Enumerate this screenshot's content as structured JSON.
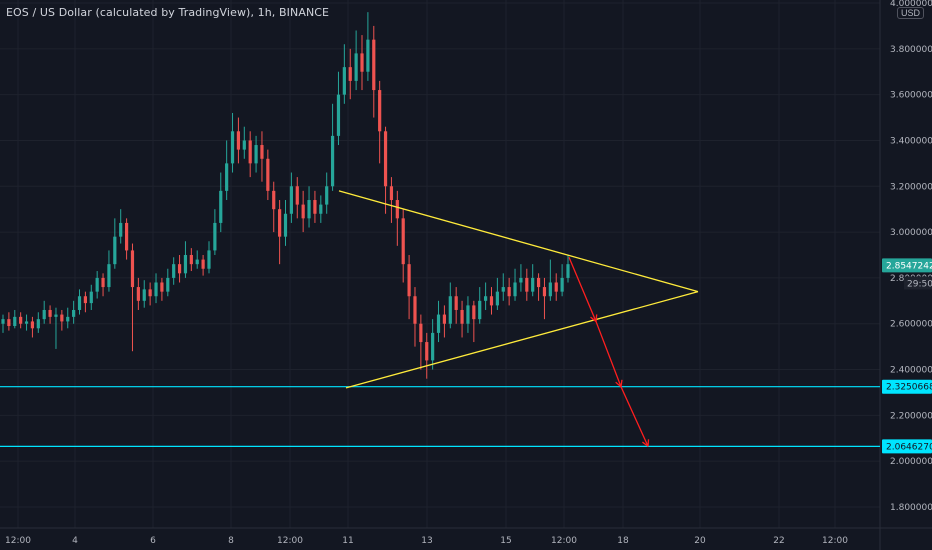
{
  "header": {
    "title": "EOS / US Dollar (calculated by TradingView), 1h, BINANCE",
    "currency": "USD"
  },
  "chart_data": {
    "type": "candlestick",
    "ylim": [
      1.7,
      4.0
    ],
    "y_ticks": [
      "4.0000000",
      "3.8000000",
      "3.6000000",
      "3.4000000",
      "3.2000000",
      "3.0000000",
      "2.8000000",
      "2.6000000",
      "2.4000000",
      "2.2000000",
      "2.0000000",
      "1.8000000"
    ],
    "x_ticks": [
      "12:00",
      "4",
      "6",
      "8",
      "12:00",
      "11",
      "13",
      "15",
      "12:00",
      "18",
      "20",
      "22",
      "12:00"
    ],
    "price_labels": [
      {
        "value": "2.8547242",
        "color": "#26a69a"
      },
      {
        "value": "2.3250668",
        "color": "#00e5ff"
      },
      {
        "value": "2.0646270",
        "color": "#00e5ff"
      }
    ],
    "countdown_label": "29:50",
    "horizontal_levels": [
      2.3250668,
      2.064627
    ],
    "candles": [
      [
        2.6,
        2.62,
        2.56,
        2.64
      ],
      [
        2.62,
        2.59,
        2.57,
        2.65
      ],
      [
        2.59,
        2.63,
        2.58,
        2.66
      ],
      [
        2.63,
        2.6,
        2.58,
        2.65
      ],
      [
        2.6,
        2.61,
        2.57,
        2.64
      ],
      [
        2.61,
        2.58,
        2.54,
        2.63
      ],
      [
        2.58,
        2.62,
        2.56,
        2.65
      ],
      [
        2.62,
        2.66,
        2.6,
        2.7
      ],
      [
        2.66,
        2.63,
        2.6,
        2.68
      ],
      [
        2.63,
        2.64,
        2.49,
        2.67
      ],
      [
        2.64,
        2.61,
        2.57,
        2.66
      ],
      [
        2.61,
        2.63,
        2.58,
        2.67
      ],
      [
        2.63,
        2.66,
        2.6,
        2.7
      ],
      [
        2.66,
        2.72,
        2.64,
        2.75
      ],
      [
        2.72,
        2.69,
        2.65,
        2.74
      ],
      [
        2.69,
        2.74,
        2.66,
        2.77
      ],
      [
        2.74,
        2.8,
        2.71,
        2.83
      ],
      [
        2.8,
        2.76,
        2.72,
        2.82
      ],
      [
        2.76,
        2.86,
        2.74,
        2.92
      ],
      [
        2.86,
        2.98,
        2.84,
        3.06
      ],
      [
        2.98,
        3.04,
        2.95,
        3.1
      ],
      [
        3.04,
        2.92,
        2.88,
        3.06
      ],
      [
        2.92,
        2.76,
        2.48,
        2.95
      ],
      [
        2.76,
        2.7,
        2.66,
        2.8
      ],
      [
        2.7,
        2.75,
        2.67,
        2.79
      ],
      [
        2.75,
        2.72,
        2.68,
        2.78
      ],
      [
        2.72,
        2.78,
        2.69,
        2.82
      ],
      [
        2.78,
        2.74,
        2.7,
        2.8
      ],
      [
        2.74,
        2.8,
        2.72,
        2.84
      ],
      [
        2.8,
        2.86,
        2.77,
        2.89
      ],
      [
        2.86,
        2.82,
        2.78,
        2.9
      ],
      [
        2.82,
        2.9,
        2.8,
        2.96
      ],
      [
        2.9,
        2.86,
        2.83,
        2.93
      ],
      [
        2.86,
        2.88,
        2.84,
        2.92
      ],
      [
        2.88,
        2.84,
        2.81,
        2.9
      ],
      [
        2.84,
        2.92,
        2.82,
        2.96
      ],
      [
        2.92,
        3.04,
        2.9,
        3.1
      ],
      [
        3.04,
        3.18,
        3.0,
        3.26
      ],
      [
        3.18,
        3.3,
        3.14,
        3.4
      ],
      [
        3.3,
        3.44,
        3.26,
        3.52
      ],
      [
        3.44,
        3.36,
        3.3,
        3.5
      ],
      [
        3.36,
        3.4,
        3.32,
        3.46
      ],
      [
        3.4,
        3.3,
        3.24,
        3.44
      ],
      [
        3.3,
        3.38,
        3.26,
        3.42
      ],
      [
        3.38,
        3.32,
        3.22,
        3.44
      ],
      [
        3.32,
        3.18,
        3.14,
        3.36
      ],
      [
        3.18,
        3.1,
        3.0,
        3.22
      ],
      [
        3.1,
        2.98,
        2.86,
        3.14
      ],
      [
        2.98,
        3.08,
        2.94,
        3.14
      ],
      [
        3.08,
        3.2,
        3.04,
        3.26
      ],
      [
        3.2,
        3.12,
        3.06,
        3.24
      ],
      [
        3.12,
        3.06,
        3.0,
        3.18
      ],
      [
        3.06,
        3.14,
        3.02,
        3.2
      ],
      [
        3.14,
        3.08,
        3.04,
        3.18
      ],
      [
        3.08,
        3.12,
        3.04,
        3.16
      ],
      [
        3.12,
        3.2,
        3.08,
        3.26
      ],
      [
        3.2,
        3.42,
        3.18,
        3.56
      ],
      [
        3.42,
        3.6,
        3.38,
        3.7
      ],
      [
        3.6,
        3.72,
        3.56,
        3.82
      ],
      [
        3.72,
        3.66,
        3.58,
        3.8
      ],
      [
        3.66,
        3.78,
        3.62,
        3.88
      ],
      [
        3.78,
        3.7,
        3.62,
        3.86
      ],
      [
        3.7,
        3.84,
        3.66,
        3.96
      ],
      [
        3.84,
        3.62,
        3.5,
        3.9
      ],
      [
        3.62,
        3.44,
        3.3,
        3.66
      ],
      [
        3.44,
        3.2,
        3.08,
        3.46
      ],
      [
        3.2,
        3.14,
        3.04,
        3.24
      ],
      [
        3.14,
        3.06,
        2.94,
        3.18
      ],
      [
        3.06,
        2.86,
        2.78,
        3.1
      ],
      [
        2.86,
        2.72,
        2.62,
        2.9
      ],
      [
        2.72,
        2.6,
        2.5,
        2.76
      ],
      [
        2.6,
        2.52,
        2.4,
        2.64
      ],
      [
        2.52,
        2.44,
        2.36,
        2.56
      ],
      [
        2.44,
        2.56,
        2.4,
        2.62
      ],
      [
        2.56,
        2.64,
        2.52,
        2.7
      ],
      [
        2.64,
        2.6,
        2.54,
        2.68
      ],
      [
        2.6,
        2.72,
        2.58,
        2.78
      ],
      [
        2.72,
        2.66,
        2.6,
        2.76
      ],
      [
        2.66,
        2.6,
        2.54,
        2.7
      ],
      [
        2.6,
        2.68,
        2.56,
        2.72
      ],
      [
        2.68,
        2.62,
        2.52,
        2.7
      ],
      [
        2.62,
        2.7,
        2.6,
        2.76
      ],
      [
        2.7,
        2.72,
        2.66,
        2.78
      ],
      [
        2.72,
        2.68,
        2.64,
        2.76
      ],
      [
        2.68,
        2.74,
        2.66,
        2.8
      ],
      [
        2.74,
        2.76,
        2.7,
        2.82
      ],
      [
        2.76,
        2.72,
        2.68,
        2.8
      ],
      [
        2.72,
        2.78,
        2.7,
        2.84
      ],
      [
        2.78,
        2.8,
        2.74,
        2.86
      ],
      [
        2.8,
        2.74,
        2.7,
        2.84
      ],
      [
        2.74,
        2.8,
        2.72,
        2.86
      ],
      [
        2.8,
        2.76,
        2.7,
        2.82
      ],
      [
        2.76,
        2.72,
        2.62,
        2.8
      ],
      [
        2.72,
        2.78,
        2.7,
        2.88
      ],
      [
        2.78,
        2.74,
        2.7,
        2.82
      ],
      [
        2.74,
        2.8,
        2.72,
        2.86
      ],
      [
        2.8,
        2.86,
        2.78,
        2.9
      ]
    ],
    "triangle": {
      "apex": 2.74,
      "upper_start": 3.18,
      "lower_start": 2.32
    },
    "projection_arrow": {
      "from": 2.89,
      "mid": 2.61,
      "to_first": 2.325,
      "to_final": 2.065
    },
    "colors": {
      "background": "#131722",
      "up": "#26a69a",
      "down": "#ef5350",
      "triangle": "#ffeb3b",
      "levels": "#00e5ff",
      "arrow": "#ff1f1f",
      "grid": "#1e222d"
    }
  }
}
